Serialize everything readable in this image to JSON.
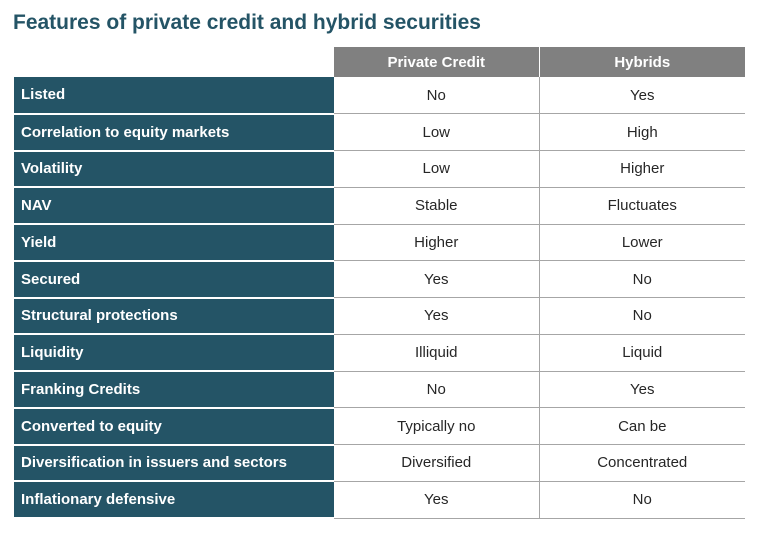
{
  "title": "Features of private credit and hybrid securities",
  "table": {
    "columns": [
      "Private Credit",
      "Hybrids"
    ],
    "rows": [
      {
        "feature": "Listed",
        "private_credit": "No",
        "hybrids": "Yes"
      },
      {
        "feature": "Correlation to equity markets",
        "private_credit": "Low",
        "hybrids": "High"
      },
      {
        "feature": "Volatility",
        "private_credit": "Low",
        "hybrids": "Higher"
      },
      {
        "feature": "NAV",
        "private_credit": "Stable",
        "hybrids": "Fluctuates"
      },
      {
        "feature": "Yield",
        "private_credit": "Higher",
        "hybrids": "Lower"
      },
      {
        "feature": "Secured",
        "private_credit": "Yes",
        "hybrids": "No"
      },
      {
        "feature": "Structural protections",
        "private_credit": "Yes",
        "hybrids": "No"
      },
      {
        "feature": "Liquidity",
        "private_credit": "Illiquid",
        "hybrids": "Liquid"
      },
      {
        "feature": "Franking Credits",
        "private_credit": "No",
        "hybrids": "Yes"
      },
      {
        "feature": "Converted to equity",
        "private_credit": "Typically no",
        "hybrids": "Can be"
      },
      {
        "feature": "Diversification in issuers and sectors",
        "private_credit": "Diversified",
        "hybrids": "Concentrated"
      },
      {
        "feature": "Inflationary defensive",
        "private_credit": "Yes",
        "hybrids": "No"
      }
    ]
  },
  "colors": {
    "title": "#245466",
    "row_label_background": "#245466",
    "header_background": "#808080",
    "divider": "#a6a6a6"
  }
}
